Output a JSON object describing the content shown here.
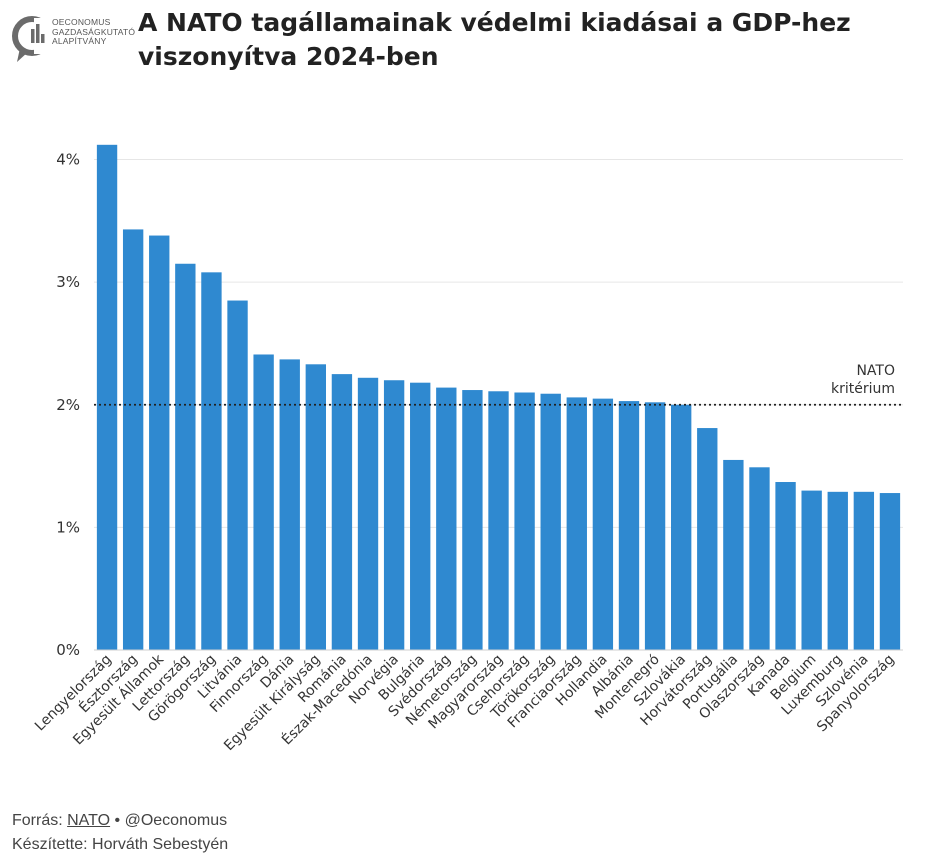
{
  "header": {
    "logo_lines": [
      "OECONOMUS",
      "GAZDASÁGKUTATÓ",
      "ALAPÍTVÁNY"
    ],
    "logo_icon": "oeconomus-logo-icon",
    "title": "A NATO tagállamainak védelmi kiadásai a GDP-hez viszonyítva 2024-ben"
  },
  "chart_data": {
    "type": "bar",
    "title": "A NATO tagállamainak védelmi kiadásai a GDP-hez viszonyítva 2024-ben",
    "xlabel": "",
    "ylabel": "",
    "ylim": [
      0,
      4.2
    ],
    "yticks": [
      0,
      1,
      2,
      3,
      4
    ],
    "ytick_labels": [
      "0%",
      "1%",
      "2%",
      "3%",
      "4%"
    ],
    "grid": true,
    "bar_color": "#2f89d0",
    "categories": [
      "Lengyelország",
      "Észtország",
      "Egyesült Államok",
      "Lettország",
      "Görögország",
      "Litvánia",
      "Finnország",
      "Dánia",
      "Egyesült Királyság",
      "Románia",
      "Észak-Macedónia",
      "Norvégia",
      "Bulgária",
      "Svédország",
      "Németország",
      "Magyarország",
      "Csehország",
      "Törökország",
      "Franciaország",
      "Hollandia",
      "Albánia",
      "Montenegró",
      "Szlovákia",
      "Horvátország",
      "Portugália",
      "Olaszország",
      "Kanada",
      "Belgium",
      "Luxemburg",
      "Szlovénia",
      "Spanyolország"
    ],
    "values": [
      4.12,
      3.43,
      3.38,
      3.15,
      3.08,
      2.85,
      2.41,
      2.37,
      2.33,
      2.25,
      2.22,
      2.2,
      2.18,
      2.14,
      2.12,
      2.11,
      2.1,
      2.09,
      2.06,
      2.05,
      2.03,
      2.02,
      2.0,
      1.81,
      1.55,
      1.49,
      1.37,
      1.3,
      1.29,
      1.29,
      1.28
    ],
    "reference_line": {
      "value": 2.0,
      "label_lines": [
        "NATO",
        "kritérium"
      ],
      "style": "dotted",
      "color": "#222222"
    }
  },
  "footer": {
    "source_prefix": "Forrás: ",
    "source_link": "NATO",
    "source_suffix": " • @Oeconomus",
    "author": "Készítette: Horváth Sebestyén"
  }
}
